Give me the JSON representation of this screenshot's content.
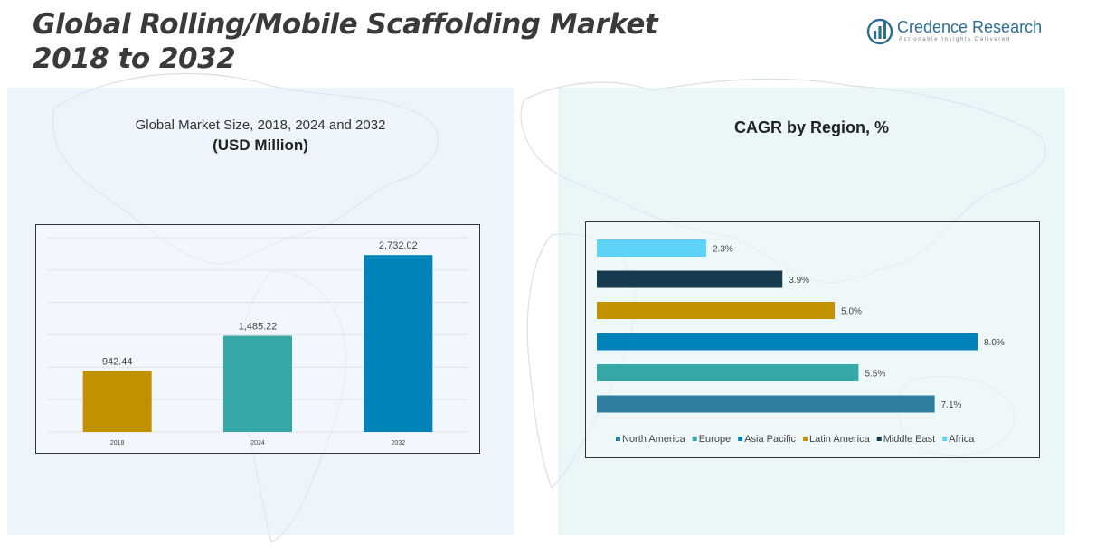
{
  "header": {
    "title_line1": "Global Rolling/Mobile Scaffolding Market",
    "title_line2": "2018 to 2032"
  },
  "logo": {
    "name": "Credence Research",
    "tagline": "Actionable Insights Delivered",
    "icon": "bar-chart-logo-icon"
  },
  "left_panel": {
    "subtitle": "Global Market Size, 2018, 2024 and 2032",
    "unit": "(USD Million)"
  },
  "right_panel": {
    "title": "CAGR by Region, %"
  },
  "colors": {
    "north_america": "#2F7EA0",
    "europe": "#35A7A7",
    "asia_pacific": "#0083B8",
    "latin_america": "#C19100",
    "middle_east": "#163A4E",
    "africa": "#5ED2F7"
  },
  "chart_data": [
    {
      "type": "bar",
      "categories": [
        "2018",
        "2024",
        "2032"
      ],
      "values": [
        942.44,
        1485.22,
        2732.02
      ],
      "value_labels": [
        "942.44",
        "1,485.22",
        "2,732.02"
      ],
      "colors": [
        "#C19100",
        "#35A7A7",
        "#0083B8"
      ],
      "title": "Global Market Size, 2018, 2024 and 2032",
      "ylabel": "(USD Million)",
      "ylim": [
        0,
        3000
      ],
      "grid": true
    },
    {
      "type": "bar",
      "orientation": "horizontal",
      "title": "CAGR by Region, %",
      "categories": [
        "Africa",
        "Middle East",
        "Latin America",
        "Asia Pacific",
        "Europe",
        "North America"
      ],
      "values": [
        2.3,
        3.9,
        5.0,
        8.0,
        5.5,
        7.1
      ],
      "value_labels": [
        "2.3%",
        "3.9%",
        "5.0%",
        "8.0%",
        "5.5%",
        "7.1%"
      ],
      "colors": [
        "#5ED2F7",
        "#163A4E",
        "#C19100",
        "#0083B8",
        "#35A7A7",
        "#2F7EA0"
      ],
      "xlim": [
        0,
        8.5
      ],
      "legend_position": "bottom",
      "legend": [
        "North America",
        "Europe",
        "Asia Pacific",
        "Latin America",
        "Middle East",
        "Africa"
      ]
    }
  ]
}
